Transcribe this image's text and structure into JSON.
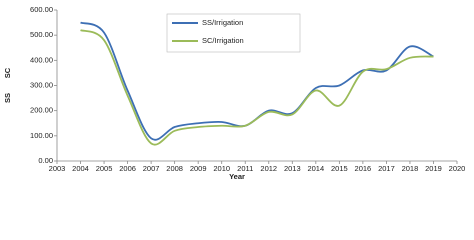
{
  "chart_data": {
    "type": "line",
    "x": [
      2004,
      2005,
      2006,
      2007,
      2008,
      2009,
      2010,
      2011,
      2012,
      2013,
      2014,
      2015,
      2016,
      2017,
      2018,
      2019
    ],
    "series": [
      {
        "name": "SS/Irrigation",
        "color": "#3d6fb4",
        "values": [
          550,
          510,
          280,
          90,
          135,
          150,
          155,
          140,
          200,
          190,
          290,
          300,
          360,
          360,
          455,
          415
        ]
      },
      {
        "name": "SC/Irrigation",
        "color": "#9bbb59",
        "values": [
          520,
          480,
          260,
          70,
          120,
          135,
          140,
          140,
          195,
          185,
          280,
          220,
          355,
          365,
          410,
          415
        ]
      }
    ],
    "xlabel": "Year",
    "ylabels": [
      "SC",
      "SS"
    ],
    "xlim": [
      2003,
      2020
    ],
    "xticks": [
      2003,
      2004,
      2005,
      2006,
      2007,
      2008,
      2009,
      2010,
      2011,
      2012,
      2013,
      2014,
      2015,
      2016,
      2017,
      2018,
      2019,
      2020
    ],
    "ylim": [
      0,
      600
    ],
    "yticks": [
      {
        "value": 0,
        "label": "0.00"
      },
      {
        "value": 100,
        "label": "100.00"
      },
      {
        "value": 200,
        "label": "200.00"
      },
      {
        "value": 300,
        "label": "300.00"
      },
      {
        "value": 400,
        "label": "400.00"
      },
      {
        "value": 500,
        "label": "500.00"
      },
      {
        "value": 600,
        "label": "600.00"
      }
    ],
    "grid": false,
    "smooth": true
  }
}
